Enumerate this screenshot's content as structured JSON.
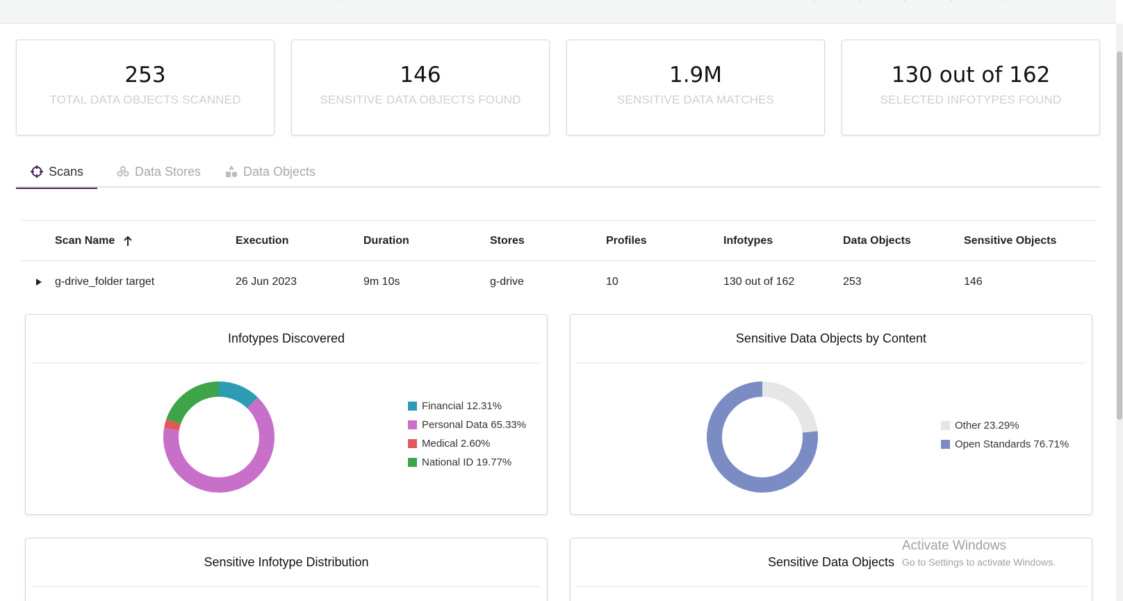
{
  "stats": [
    {
      "value": "253",
      "label": "TOTAL DATA OBJECTS SCANNED"
    },
    {
      "value": "146",
      "label": "SENSITIVE DATA OBJECTS FOUND"
    },
    {
      "value": "1.9M",
      "label": "SENSITIVE DATA MATCHES"
    },
    {
      "value": "130 out of 162",
      "label": "SELECTED INFOTYPES FOUND"
    }
  ],
  "tabs": [
    {
      "label": "Scans",
      "icon": "crosshair-icon",
      "active": true
    },
    {
      "label": "Data Stores",
      "icon": "stores-icon",
      "active": false
    },
    {
      "label": "Data Objects",
      "icon": "shapes-icon",
      "active": false
    }
  ],
  "table": {
    "columns": [
      "Scan Name",
      "Execution",
      "Duration",
      "Stores",
      "Profiles",
      "Infotypes",
      "Data Objects",
      "Sensitive Objects"
    ],
    "sort": {
      "column": "Scan Name",
      "direction": "ascending",
      "icon": "arrow-up-icon"
    },
    "rows": [
      [
        "g-drive_folder target",
        "26 Jun 2023",
        "9m 10s",
        "g-drive",
        "10",
        "130 out of 162",
        "253",
        "146"
      ]
    ]
  },
  "panels": {
    "infotypes": {
      "title": "Infotypes Discovered"
    },
    "content": {
      "title": "Sensitive Data Objects by Content"
    },
    "distribution": {
      "title": "Sensitive Infotype Distribution"
    },
    "objects": {
      "title": "Sensitive Data Objects"
    }
  },
  "chart_data": [
    {
      "type": "pie",
      "title": "Infotypes Discovered",
      "categories": [
        "Financial",
        "Personal Data",
        "Medical",
        "National ID"
      ],
      "values": [
        12.31,
        65.33,
        2.6,
        19.77
      ],
      "legend_labels": [
        "Financial 12.31%",
        "Personal Data 65.33%",
        "Medical 2.60%",
        "National ID 19.77%"
      ],
      "colors": [
        "#2e9bb5",
        "#c86fc9",
        "#e05a5a",
        "#3fa447"
      ],
      "donut": true,
      "legend": "right"
    },
    {
      "type": "pie",
      "title": "Sensitive Data Objects by Content",
      "categories": [
        "Other",
        "Open Standards"
      ],
      "values": [
        23.29,
        76.71
      ],
      "legend_labels": [
        "Other 23.29%",
        "Open Standards 76.71%"
      ],
      "colors": [
        "#e6e6e6",
        "#7b8cc5"
      ],
      "donut": true,
      "legend": "right"
    }
  ],
  "watermark": {
    "line1": "Activate Windows",
    "line2": "Go to Settings to activate Windows."
  },
  "colors": {
    "tab_active_underline": "#4a1f5c",
    "stat_label": "#cfcfcf"
  }
}
